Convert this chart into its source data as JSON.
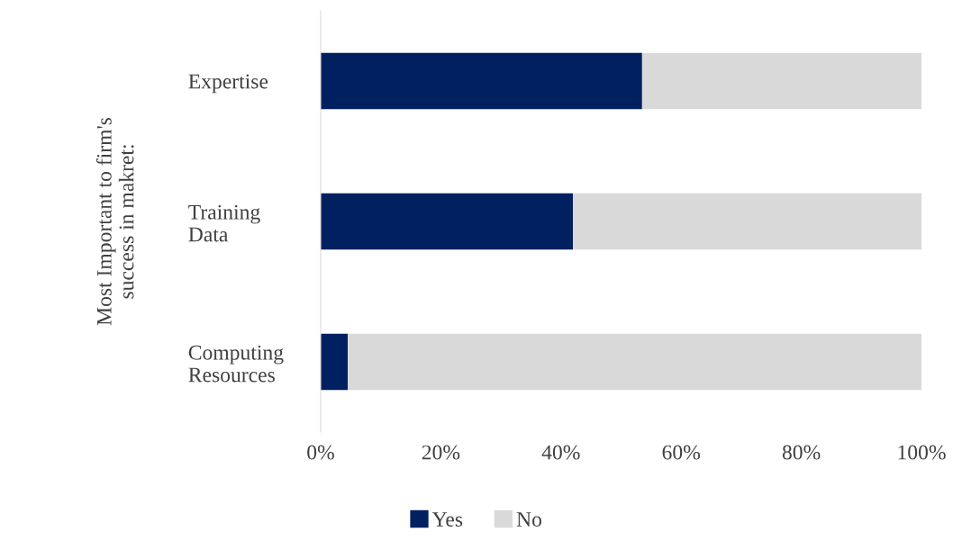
{
  "chart_data": {
    "type": "bar",
    "orientation": "horizontal",
    "stacked": true,
    "ylabel": "Most Important to firm's\nsuccess in makret:",
    "categories": [
      "Expertise",
      "Training\nData",
      "Computing\nResources"
    ],
    "series": [
      {
        "name": "Yes",
        "color": "#002060",
        "values": [
          53.5,
          42,
          4.5
        ]
      },
      {
        "name": "No",
        "color": "#d9d9d9",
        "values": [
          46.5,
          58,
          95.5
        ]
      }
    ],
    "xlim": [
      0,
      100
    ],
    "xticks": [
      {
        "value": 0,
        "label": "0%"
      },
      {
        "value": 20,
        "label": "20%"
      },
      {
        "value": 40,
        "label": "40%"
      },
      {
        "value": 60,
        "label": "60%"
      },
      {
        "value": 80,
        "label": "80%"
      },
      {
        "value": 100,
        "label": "100%"
      }
    ],
    "grid": false,
    "legend": "bottom"
  }
}
